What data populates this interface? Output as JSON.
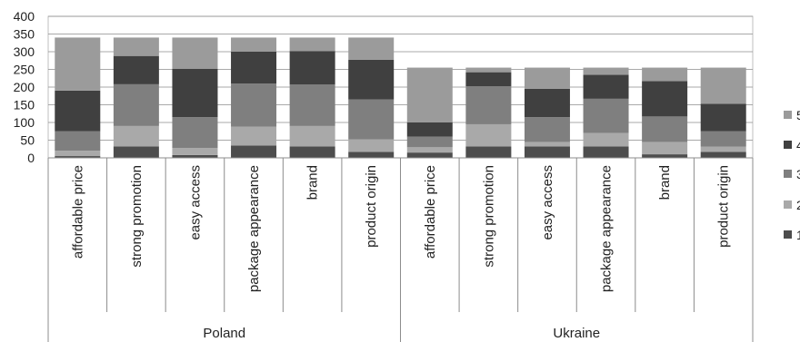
{
  "chart_data": {
    "type": "bar",
    "stacked": true,
    "title": "",
    "xlabel": "",
    "ylabel": "",
    "ylim": [
      0,
      400
    ],
    "yticks": [
      0,
      50,
      100,
      150,
      200,
      250,
      300,
      350,
      400
    ],
    "grid": true,
    "legend_position": "right",
    "groups": [
      {
        "name": "Poland",
        "categories": [
          "affordable price",
          "strong promotion",
          "easy access",
          "package appearance",
          "brand",
          "product origin"
        ]
      },
      {
        "name": "Ukraine",
        "categories": [
          "affordable price",
          "strong promotion",
          "easy access",
          "package appearance",
          "brand",
          "product origin"
        ]
      }
    ],
    "series": [
      {
        "name": "1",
        "color": "#4d4d4d",
        "values": [
          5,
          32,
          8,
          35,
          32,
          17,
          15,
          32,
          32,
          32,
          10,
          17
        ]
      },
      {
        "name": "2",
        "color": "#a9a9a9",
        "values": [
          15,
          58,
          20,
          53,
          58,
          35,
          15,
          63,
          13,
          38,
          35,
          15
        ]
      },
      {
        "name": "3",
        "color": "#7f7f7f",
        "values": [
          55,
          118,
          87,
          122,
          117,
          113,
          30,
          107,
          70,
          97,
          72,
          43
        ]
      },
      {
        "name": "4",
        "color": "#404040",
        "values": [
          115,
          80,
          137,
          90,
          95,
          112,
          40,
          40,
          80,
          68,
          100,
          78
        ]
      },
      {
        "name": "5",
        "color": "#9b9b9b",
        "values": [
          150,
          52,
          88,
          40,
          38,
          63,
          155,
          13,
          60,
          20,
          38,
          102
        ]
      }
    ]
  }
}
